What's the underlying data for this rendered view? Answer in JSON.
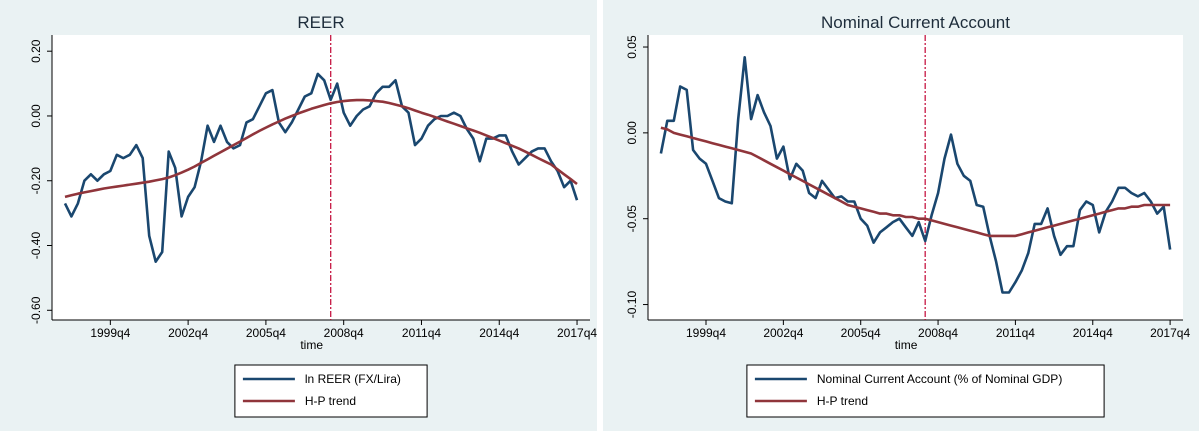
{
  "chart_data": [
    {
      "type": "line",
      "title": "REER",
      "x_label": "time",
      "x": [
        152,
        153,
        154,
        155,
        156,
        157,
        158,
        159,
        160,
        161,
        162,
        163,
        164,
        165,
        166,
        167,
        168,
        169,
        170,
        171,
        172,
        173,
        174,
        175,
        176,
        177,
        178,
        179,
        180,
        181,
        182,
        183,
        184,
        185,
        186,
        187,
        188,
        189,
        190,
        191,
        192,
        193,
        194,
        195,
        196,
        197,
        198,
        199,
        200,
        201,
        202,
        203,
        204,
        205,
        206,
        207,
        208,
        209,
        210,
        211,
        212,
        213,
        214,
        215,
        216,
        217,
        218,
        219,
        220,
        221,
        222,
        223,
        224,
        225,
        226,
        227,
        228,
        229,
        230,
        231
      ],
      "xlim": [
        150,
        233
      ],
      "xticks": [
        {
          "value": 159,
          "label": "1999q4"
        },
        {
          "value": 171,
          "label": "2002q4"
        },
        {
          "value": 183,
          "label": "2005q4"
        },
        {
          "value": 195,
          "label": "2008q4"
        },
        {
          "value": 207,
          "label": "2011q4"
        },
        {
          "value": 219,
          "label": "2014q4"
        },
        {
          "value": 231,
          "label": "2017q4"
        }
      ],
      "ylim": [
        -0.63,
        0.25
      ],
      "yticks": [
        {
          "value": -0.6,
          "label": "-0.60"
        },
        {
          "value": -0.4,
          "label": "-0.40"
        },
        {
          "value": -0.2,
          "label": "-0.20"
        },
        {
          "value": 0,
          "label": "0.00"
        },
        {
          "value": 0.2,
          "label": "0.20"
        }
      ],
      "vline": 193,
      "series": [
        {
          "name": "ln REER (FX/Lira)",
          "color": "#1a476f",
          "values": [
            -0.27,
            -0.31,
            -0.27,
            -0.2,
            -0.18,
            -0.2,
            -0.18,
            -0.17,
            -0.12,
            -0.13,
            -0.12,
            -0.09,
            -0.13,
            -0.37,
            -0.45,
            -0.42,
            -0.11,
            -0.16,
            -0.31,
            -0.25,
            -0.22,
            -0.14,
            -0.03,
            -0.08,
            -0.03,
            -0.08,
            -0.1,
            -0.09,
            -0.02,
            -0.01,
            0.03,
            0.07,
            0.08,
            -0.02,
            -0.05,
            -0.02,
            0.02,
            0.06,
            0.07,
            0.13,
            0.11,
            0.05,
            0.1,
            0.01,
            -0.03,
            0.0,
            0.02,
            0.03,
            0.07,
            0.09,
            0.09,
            0.11,
            0.03,
            0.01,
            -0.09,
            -0.07,
            -0.03,
            -0.01,
            0.0,
            0.0,
            0.01,
            0.0,
            -0.04,
            -0.07,
            -0.14,
            -0.07,
            -0.07,
            -0.06,
            -0.06,
            -0.11,
            -0.15,
            -0.13,
            -0.11,
            -0.1,
            -0.1,
            -0.14,
            -0.17,
            -0.22,
            -0.2,
            -0.26
          ]
        },
        {
          "name": "H-P trend",
          "color": "#90353b",
          "values": [
            -0.25,
            -0.245,
            -0.24,
            -0.236,
            -0.232,
            -0.228,
            -0.224,
            -0.221,
            -0.218,
            -0.215,
            -0.212,
            -0.209,
            -0.206,
            -0.203,
            -0.199,
            -0.195,
            -0.19,
            -0.183,
            -0.175,
            -0.166,
            -0.156,
            -0.145,
            -0.134,
            -0.123,
            -0.112,
            -0.101,
            -0.09,
            -0.079,
            -0.068,
            -0.057,
            -0.046,
            -0.036,
            -0.026,
            -0.017,
            -0.008,
            0.0,
            0.008,
            0.015,
            0.022,
            0.028,
            0.034,
            0.039,
            0.043,
            0.046,
            0.048,
            0.049,
            0.049,
            0.048,
            0.046,
            0.044,
            0.04,
            0.035,
            0.03,
            0.024,
            0.017,
            0.01,
            0.004,
            -0.003,
            -0.01,
            -0.017,
            -0.024,
            -0.031,
            -0.038,
            -0.045,
            -0.052,
            -0.06,
            -0.068,
            -0.076,
            -0.084,
            -0.092,
            -0.1,
            -0.11,
            -0.12,
            -0.13,
            -0.14,
            -0.15,
            -0.165,
            -0.18,
            -0.195,
            -0.21
          ]
        }
      ]
    },
    {
      "type": "line",
      "title": "Nominal Current Account",
      "x_label": "time",
      "x": [
        152,
        153,
        154,
        155,
        156,
        157,
        158,
        159,
        160,
        161,
        162,
        163,
        164,
        165,
        166,
        167,
        168,
        169,
        170,
        171,
        172,
        173,
        174,
        175,
        176,
        177,
        178,
        179,
        180,
        181,
        182,
        183,
        184,
        185,
        186,
        187,
        188,
        189,
        190,
        191,
        192,
        193,
        194,
        195,
        196,
        197,
        198,
        199,
        200,
        201,
        202,
        203,
        204,
        205,
        206,
        207,
        208,
        209,
        210,
        211,
        212,
        213,
        214,
        215,
        216,
        217,
        218,
        219,
        220,
        221,
        222,
        223,
        224,
        225,
        226,
        227,
        228,
        229,
        230,
        231
      ],
      "xlim": [
        150,
        233
      ],
      "xticks": [
        {
          "value": 159,
          "label": "1999q4"
        },
        {
          "value": 171,
          "label": "2002q4"
        },
        {
          "value": 183,
          "label": "2005q4"
        },
        {
          "value": 195,
          "label": "2008q4"
        },
        {
          "value": 207,
          "label": "2011q4"
        },
        {
          "value": 219,
          "label": "2014q4"
        },
        {
          "value": 231,
          "label": "2017q4"
        }
      ],
      "ylim": [
        -0.109,
        0.057
      ],
      "yticks": [
        {
          "value": -0.1,
          "label": "-0.10"
        },
        {
          "value": -0.05,
          "label": "-0.05"
        },
        {
          "value": 0,
          "label": "0.00"
        },
        {
          "value": 0.05,
          "label": "0.05"
        }
      ],
      "vline": 193,
      "series": [
        {
          "name": "Nominal Current Account (% of Nominal GDP)",
          "color": "#1a476f",
          "values": [
            -0.012,
            0.007,
            0.007,
            0.027,
            0.025,
            -0.01,
            -0.015,
            -0.018,
            -0.028,
            -0.038,
            -0.04,
            -0.041,
            0.008,
            0.044,
            0.008,
            0.022,
            0.012,
            0.004,
            -0.015,
            -0.008,
            -0.027,
            -0.018,
            -0.022,
            -0.035,
            -0.038,
            -0.028,
            -0.033,
            -0.038,
            -0.037,
            -0.04,
            -0.04,
            -0.05,
            -0.054,
            -0.064,
            -0.058,
            -0.055,
            -0.052,
            -0.05,
            -0.055,
            -0.06,
            -0.052,
            -0.063,
            -0.048,
            -0.035,
            -0.015,
            -0.001,
            -0.018,
            -0.025,
            -0.028,
            -0.042,
            -0.043,
            -0.06,
            -0.075,
            -0.093,
            -0.093,
            -0.087,
            -0.08,
            -0.07,
            -0.053,
            -0.053,
            -0.044,
            -0.06,
            -0.071,
            -0.066,
            -0.066,
            -0.045,
            -0.04,
            -0.042,
            -0.058,
            -0.046,
            -0.04,
            -0.032,
            -0.032,
            -0.035,
            -0.037,
            -0.035,
            -0.04,
            -0.047,
            -0.043,
            -0.068
          ]
        },
        {
          "name": "H-P trend",
          "color": "#90353b",
          "values": [
            0.003,
            0.002,
            0.0,
            -0.001,
            -0.002,
            -0.003,
            -0.004,
            -0.005,
            -0.006,
            -0.007,
            -0.008,
            -0.009,
            -0.01,
            -0.011,
            -0.012,
            -0.014,
            -0.016,
            -0.018,
            -0.02,
            -0.022,
            -0.024,
            -0.026,
            -0.028,
            -0.03,
            -0.032,
            -0.034,
            -0.036,
            -0.038,
            -0.04,
            -0.042,
            -0.043,
            -0.044,
            -0.045,
            -0.046,
            -0.047,
            -0.047,
            -0.048,
            -0.048,
            -0.049,
            -0.049,
            -0.05,
            -0.05,
            -0.051,
            -0.052,
            -0.053,
            -0.054,
            -0.055,
            -0.056,
            -0.057,
            -0.058,
            -0.059,
            -0.06,
            -0.06,
            -0.06,
            -0.06,
            -0.06,
            -0.059,
            -0.058,
            -0.057,
            -0.056,
            -0.055,
            -0.054,
            -0.053,
            -0.052,
            -0.051,
            -0.05,
            -0.049,
            -0.048,
            -0.047,
            -0.046,
            -0.045,
            -0.044,
            -0.044,
            -0.043,
            -0.043,
            -0.042,
            -0.042,
            -0.042,
            -0.042,
            -0.042
          ]
        }
      ]
    }
  ]
}
